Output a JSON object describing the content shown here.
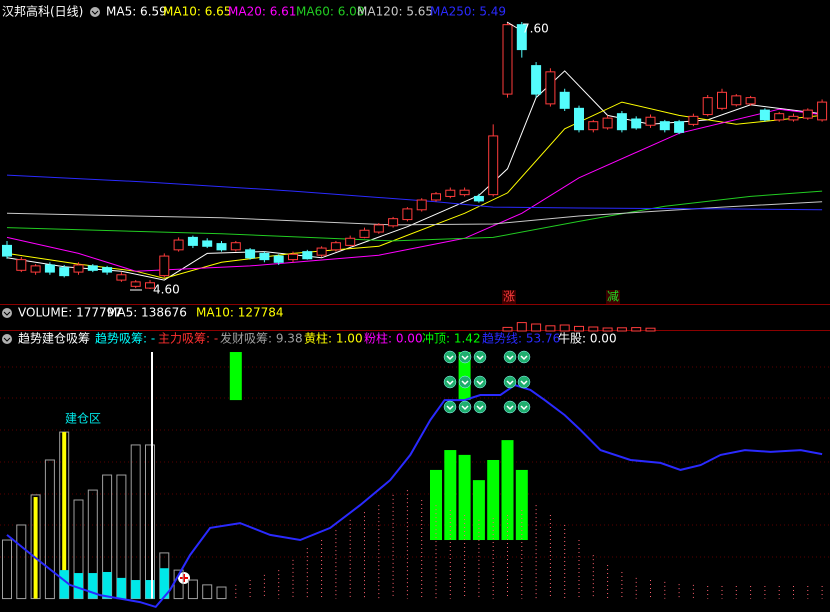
{
  "chart_data": [
    {
      "type": "candlestick",
      "title": "汉邦高科(日线)",
      "ylim": [
        4.6,
        7.6
      ],
      "up_color": "#ff3c3c",
      "down_color": "#54fcfc",
      "open": [
        5.09,
        4.81,
        4.79,
        4.87,
        4.84,
        4.79,
        4.86,
        4.84,
        4.7,
        4.63,
        4.61,
        4.75,
        5.04,
        5.18,
        5.14,
        5.11,
        5.04,
        5.04,
        5.0,
        4.97,
        4.93,
        5.02,
        4.98,
        5.04,
        5.09,
        5.18,
        5.24,
        5.31,
        5.38,
        5.49,
        5.6,
        5.64,
        5.66,
        5.64,
        5.66,
        6.79,
        7.57,
        7.11,
        6.68,
        6.81,
        6.63,
        6.39,
        6.41,
        6.57,
        6.51,
        6.44,
        6.48,
        6.48,
        6.45,
        6.56,
        6.63,
        6.67,
        6.68,
        6.61,
        6.5,
        6.5,
        6.52,
        6.5
      ],
      "high": [
        5.14,
        4.96,
        4.88,
        4.9,
        4.87,
        4.9,
        4.88,
        4.86,
        4.79,
        4.7,
        4.7,
        5.0,
        5.18,
        5.2,
        5.17,
        5.14,
        5.14,
        5.06,
        5.02,
        4.99,
        5.02,
        5.04,
        5.08,
        5.14,
        5.2,
        5.29,
        5.34,
        5.41,
        5.52,
        5.62,
        5.69,
        5.74,
        5.74,
        5.67,
        6.45,
        7.6,
        7.6,
        7.15,
        7.08,
        6.85,
        6.66,
        6.5,
        6.55,
        6.6,
        6.54,
        6.56,
        6.5,
        6.5,
        6.57,
        6.78,
        6.85,
        6.79,
        6.77,
        6.63,
        6.59,
        6.57,
        6.63,
        6.73
      ],
      "low": [
        4.94,
        4.79,
        4.76,
        4.76,
        4.73,
        4.76,
        4.79,
        4.76,
        4.68,
        4.61,
        4.6,
        4.73,
        5.02,
        5.06,
        5.06,
        5.02,
        5.02,
        4.93,
        4.9,
        4.87,
        4.9,
        4.93,
        4.96,
        5.02,
        5.08,
        5.17,
        5.22,
        5.29,
        5.36,
        5.47,
        5.58,
        5.62,
        5.64,
        5.57,
        5.64,
        6.75,
        7.2,
        6.75,
        6.65,
        6.6,
        6.36,
        6.36,
        6.39,
        6.36,
        6.39,
        6.41,
        6.36,
        6.34,
        6.43,
        6.54,
        6.61,
        6.65,
        6.66,
        6.48,
        6.48,
        6.48,
        6.5,
        6.48
      ],
      "close": [
        4.97,
        4.93,
        4.86,
        4.79,
        4.75,
        4.87,
        4.81,
        4.79,
        4.76,
        4.68,
        4.67,
        4.97,
        5.15,
        5.09,
        5.08,
        5.04,
        5.12,
        4.95,
        4.93,
        4.9,
        4.99,
        4.94,
        5.06,
        5.12,
        5.17,
        5.26,
        5.32,
        5.39,
        5.5,
        5.6,
        5.67,
        5.71,
        5.71,
        5.59,
        6.32,
        7.57,
        7.29,
        6.79,
        7.04,
        6.63,
        6.39,
        6.48,
        6.52,
        6.39,
        6.41,
        6.53,
        6.39,
        6.36,
        6.54,
        6.75,
        6.81,
        6.77,
        6.75,
        6.5,
        6.57,
        6.54,
        6.61,
        6.7
      ],
      "series": [
        {
          "name": "MA5: 6.59",
          "color": "#ffffff",
          "x": [
            0,
            4,
            8,
            11,
            14,
            18,
            22,
            28,
            33,
            35,
            37,
            39,
            42,
            45,
            49,
            52,
            57
          ],
          "values": [
            4.95,
            4.85,
            4.8,
            4.7,
            5.0,
            5.02,
            4.95,
            5.3,
            5.65,
            5.95,
            6.75,
            7.05,
            6.55,
            6.45,
            6.5,
            6.67,
            6.57
          ]
        },
        {
          "name": "MA10: 6.65",
          "color": "#ffff00",
          "x": [
            0,
            5,
            9,
            11,
            15,
            20,
            26,
            32,
            35,
            39,
            43,
            47,
            51,
            57
          ],
          "values": [
            5.0,
            4.88,
            4.8,
            4.72,
            4.9,
            5.0,
            5.08,
            5.45,
            5.68,
            6.4,
            6.7,
            6.55,
            6.45,
            6.55
          ]
        },
        {
          "name": "MA20: 6.61",
          "color": "#ff00ff",
          "x": [
            0,
            5,
            9,
            17,
            26,
            32,
            36,
            40,
            47,
            54,
            57
          ],
          "values": [
            5.18,
            5.0,
            4.8,
            4.86,
            4.98,
            5.17,
            5.45,
            5.85,
            6.35,
            6.62,
            6.56
          ]
        },
        {
          "name": "MA60: 6.08",
          "color": "#22cc22",
          "x": [
            0,
            15,
            27,
            34,
            40,
            46,
            52,
            57
          ],
          "values": [
            5.29,
            5.22,
            5.14,
            5.18,
            5.36,
            5.53,
            5.64,
            5.7
          ]
        },
        {
          "name": "MA120: 5.65",
          "color": "#c8c8c8",
          "x": [
            0,
            15,
            27,
            34,
            40,
            50,
            57
          ],
          "values": [
            5.45,
            5.4,
            5.32,
            5.33,
            5.42,
            5.52,
            5.58
          ]
        },
        {
          "name": "MA250: 5.49",
          "color": "#2a2aff",
          "x": [
            0,
            10,
            20,
            30,
            34,
            40,
            50,
            57
          ],
          "values": [
            5.88,
            5.8,
            5.7,
            5.58,
            5.52,
            5.51,
            5.5,
            5.49
          ]
        }
      ],
      "annotations": [
        {
          "text": "7.60",
          "color": "#ffffff"
        },
        {
          "text": "4.60",
          "color": "#ffffff"
        },
        {
          "text": "涨",
          "color": "#ff3c3c"
        },
        {
          "text": "减",
          "color": "#22dd22"
        }
      ]
    },
    {
      "type": "volume",
      "title": "VOLUME: 177797",
      "legend": [
        {
          "text": "MA5: 138676",
          "color": "#ffffff"
        },
        {
          "text": "MA10: 127784",
          "color": "#ffff00"
        }
      ],
      "ylim": [
        0,
        500000
      ],
      "color": "#ff3c3c",
      "x": [
        35,
        36,
        37,
        38,
        39,
        40,
        41,
        42,
        43,
        44,
        45
      ],
      "values": [
        180000,
        420000,
        350000,
        260000,
        300000,
        230000,
        200000,
        150000,
        160000,
        170000,
        140000
      ]
    },
    {
      "type": "indicator",
      "title": "趋势建仓吸筹",
      "legend": [
        {
          "text": "趋势吸筹: -",
          "color": "#00ffff"
        },
        {
          "text": "主力吸筹: -",
          "color": "#ff3030"
        },
        {
          "text": "发财吸筹: 9.38",
          "color": "#a0a0a0"
        },
        {
          "text": "黄柱: 1.00",
          "color": "#ffff00"
        },
        {
          "text": "粉柱: 0.00",
          "color": "#ff00ff"
        },
        {
          "text": "冲顶: 1.42",
          "color": "#00ff00"
        },
        {
          "text": "趋势线: 53.76",
          "color": "#2a2aff"
        },
        {
          "text": "牛股: 0.00",
          "color": "#ffffff"
        }
      ],
      "annotation": "建仓区",
      "ylim": [
        -5,
        100
      ],
      "series": [
        {
          "style": "bar-outline",
          "color": "#a0a0a0",
          "x": [
            0,
            1,
            2,
            3,
            4,
            5,
            6,
            7,
            8,
            9,
            10,
            11,
            12,
            13,
            14,
            15
          ],
          "values": [
            21.8,
            27.4,
            38.6,
            51.6,
            62.0,
            36.7,
            40.4,
            46.0,
            46.0,
            57.2,
            57.2,
            17.0,
            10.6,
            6.9,
            5.1,
            4.3
          ]
        },
        {
          "style": "narrow-bar",
          "color": "#ffff00",
          "x": [
            2,
            4
          ],
          "values": [
            37.8,
            62.0
          ]
        },
        {
          "style": "bar",
          "color": "#00e8e8",
          "x": [
            4,
            5,
            6,
            7,
            8,
            9,
            10,
            11
          ],
          "values": [
            10.6,
            9.5,
            9.5,
            9.9,
            7.7,
            6.9,
            6.9,
            11.3
          ]
        },
        {
          "style": "thin",
          "color": "#ffffff",
          "x": [
            10
          ],
          "values": [
            91.8
          ]
        },
        {
          "style": "range",
          "color": "#00ff00",
          "x": [
            16,
            32,
            30,
            31,
            32,
            33,
            34,
            35,
            36
          ],
          "values": [
            [
              73.9,
              91.8
            ],
            [
              73.9,
              91.8
            ],
            [
              21.8,
              47.9
            ],
            [
              21.8,
              55.3
            ],
            [
              21.8,
              53.5
            ],
            [
              21.8,
              44.1
            ],
            [
              21.8,
              51.6
            ],
            [
              21.8,
              59.0
            ],
            [
              21.8,
              47.9
            ]
          ]
        },
        {
          "style": "dotted",
          "color": "#ff6070",
          "x": [
            16,
            17,
            18,
            19,
            20,
            21,
            22,
            23,
            24,
            25,
            26,
            27,
            28,
            29,
            30,
            31,
            32,
            33,
            34,
            35,
            36,
            37,
            38,
            39,
            40,
            41,
            42,
            43,
            44,
            45,
            46,
            47,
            48,
            49,
            50,
            51,
            52,
            53,
            54,
            55,
            56,
            57
          ],
          "values": [
            5.1,
            6.9,
            8.8,
            10.6,
            14.4,
            18.8,
            21.8,
            25.5,
            29.3,
            32.2,
            34.8,
            38.6,
            40.4,
            36.7,
            34.8,
            33.0,
            31.1,
            29.3,
            30.0,
            31.1,
            33.0,
            34.8,
            31.1,
            27.4,
            21.8,
            16.2,
            12.5,
            9.9,
            7.7,
            6.9,
            6.2,
            5.4,
            5.1,
            4.7,
            4.7,
            4.7,
            4.7,
            4.7,
            4.7,
            4.7,
            4.7,
            4.7
          ]
        },
        {
          "style": "line",
          "color": "#2a2aff",
          "x": [
            0,
            2,
            4.4,
            6.5,
            9.3,
            10.4,
            11.4,
            12.8,
            14.2,
            16.3,
            18.4,
            20.5,
            22.6,
            24.7,
            26.8,
            28.2,
            29.6,
            30.6,
            32,
            33.1,
            34.5,
            35.5,
            36.6,
            37.6,
            39,
            40.1,
            41.5,
            43.6,
            45.7,
            47.1,
            48.5,
            49.9,
            51.6,
            53.4,
            55.5,
            57
          ],
          "values": [
            23.7,
            15.1,
            5.1,
            1.3,
            -1.3,
            -3.1,
            3.2,
            16.2,
            26.3,
            28.1,
            23.7,
            21.8,
            26.3,
            34.8,
            44.1,
            53.5,
            66.5,
            73.9,
            73.9,
            75.8,
            75.8,
            79.5,
            77.7,
            73.9,
            68.3,
            62.8,
            55.3,
            51.6,
            50.5,
            47.9,
            49.7,
            53.5,
            55.3,
            54.6,
            55.3,
            53.8
          ]
        }
      ]
    }
  ]
}
